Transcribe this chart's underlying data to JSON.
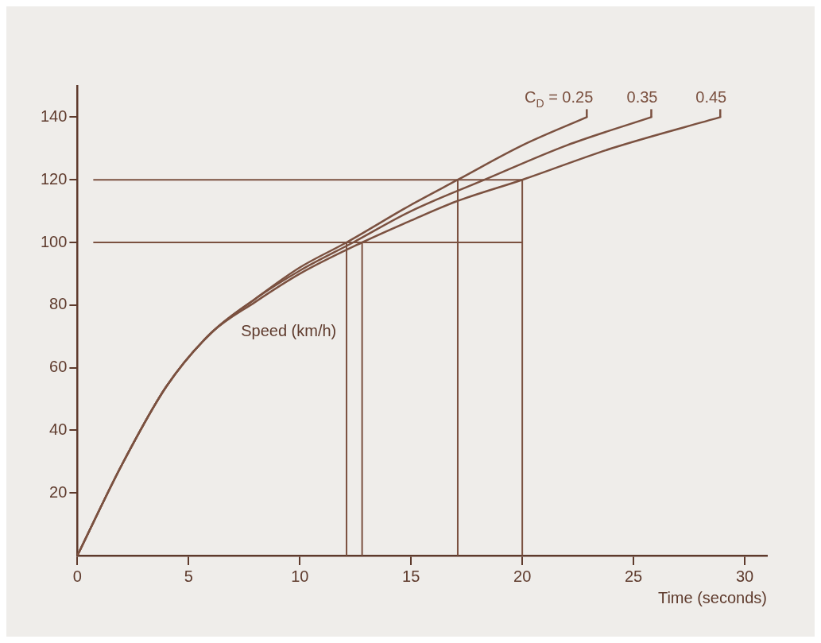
{
  "chart_data": {
    "type": "line",
    "xlabel": "Time (seconds)",
    "ylabel": "Speed (km/h)",
    "xlim": [
      0,
      31
    ],
    "ylim": [
      0,
      150
    ],
    "xticks": [
      0,
      5,
      10,
      15,
      20,
      25,
      30
    ],
    "yticks": [
      20,
      40,
      60,
      80,
      100,
      120,
      140
    ],
    "grid": false,
    "legend": false,
    "marker": "none",
    "line_style": "solid",
    "series": [
      {
        "name": "C$_{D}$ = 0.25",
        "color": "#7b5140",
        "x": [
          0,
          2,
          4,
          6,
          8,
          10,
          12.1,
          15,
          17.1,
          20,
          22.9
        ],
        "values": [
          0,
          29,
          54,
          71,
          82,
          92,
          100,
          112,
          120,
          131,
          140
        ]
      },
      {
        "name": "0.35",
        "color": "#7b5140",
        "x": [
          0,
          2,
          4,
          6,
          8,
          10,
          12.4,
          15,
          18.3,
          22,
          25.8
        ],
        "values": [
          0,
          29,
          54,
          71,
          82,
          91,
          100,
          110,
          120,
          131,
          140
        ]
      },
      {
        "name": "0.45",
        "color": "#7b5140",
        "x": [
          0,
          2,
          4,
          6,
          8,
          10,
          12.8,
          15,
          17,
          20,
          24,
          28.9
        ],
        "values": [
          0,
          29,
          54,
          71,
          81,
          90,
          100,
          107,
          113,
          120,
          130,
          140
        ]
      }
    ],
    "ref_lines": [
      {
        "axis": "y",
        "value": 100,
        "color": "#7b5140"
      },
      {
        "axis": "y",
        "value": 120,
        "color": "#7b5140"
      },
      {
        "axis": "x",
        "value": 12.1,
        "color": "#7b5140"
      },
      {
        "axis": "x",
        "value": 12.8,
        "color": "#7b5140"
      },
      {
        "axis": "x",
        "value": 17.1,
        "color": "#7b5140"
      },
      {
        "axis": "x",
        "value": 20,
        "color": "#7b5140"
      }
    ]
  }
}
